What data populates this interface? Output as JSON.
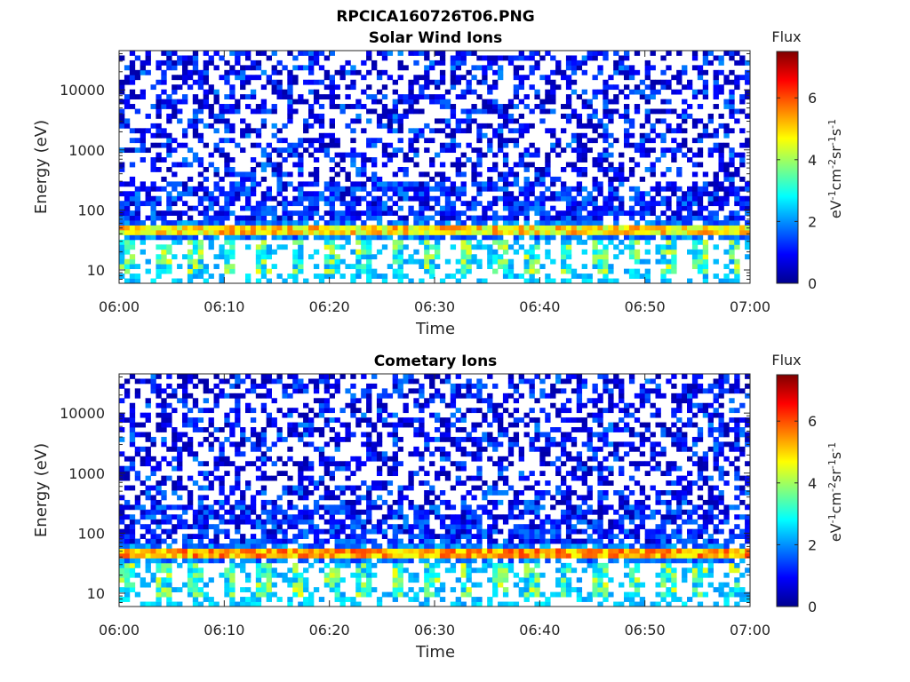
{
  "figure_title": "RPCICA160726T06.PNG",
  "chart_data": [
    {
      "type": "heatmap",
      "title": "Solar Wind Ions",
      "xlabel": "Time",
      "ylabel": "Energy (eV)",
      "x_ticks": [
        "06:00",
        "06:10",
        "06:20",
        "06:30",
        "06:40",
        "06:50",
        "07:00"
      ],
      "y_ticks": [
        "10",
        "100",
        "1000",
        "10000"
      ],
      "y_scale": "log",
      "ylim": [
        6,
        45000
      ],
      "x_range": [
        "06:00",
        "07:00"
      ],
      "colorbar": {
        "title": "Flux",
        "label": "eV-1cm-2sr-1s-1",
        "ticks": [
          "0",
          "2",
          "4",
          "6"
        ],
        "range": [
          0,
          7.5
        ],
        "colormap": "jet"
      },
      "features": [
        {
          "description": "sparse low-level background",
          "energy_range_eV": [
            70,
            45000
          ],
          "flux_range": [
            0.3,
            2.0
          ]
        },
        {
          "description": "bright continuous band",
          "energy_range_eV": [
            38,
            60
          ],
          "flux_range": [
            4.0,
            5.8
          ]
        },
        {
          "description": "periodic bursts",
          "energy_range_eV": [
            8,
            30
          ],
          "flux_range": [
            2.0,
            4.6
          ],
          "period_minutes": 3.2
        }
      ]
    },
    {
      "type": "heatmap",
      "title": "Cometary Ions",
      "xlabel": "Time",
      "ylabel": "Energy (eV)",
      "x_ticks": [
        "06:00",
        "06:10",
        "06:20",
        "06:30",
        "06:40",
        "06:50",
        "07:00"
      ],
      "y_ticks": [
        "10",
        "100",
        "1000",
        "10000"
      ],
      "y_scale": "log",
      "ylim": [
        6,
        45000
      ],
      "x_range": [
        "06:00",
        "07:00"
      ],
      "colorbar": {
        "title": "Flux",
        "label": "eV-1cm-2sr-1s-1",
        "ticks": [
          "0",
          "2",
          "4",
          "6"
        ],
        "range": [
          0,
          7.5
        ],
        "colormap": "jet"
      },
      "features": [
        {
          "description": "sparse low-level background",
          "energy_range_eV": [
            70,
            45000
          ],
          "flux_range": [
            0.3,
            2.0
          ]
        },
        {
          "description": "bright continuous band",
          "energy_range_eV": [
            38,
            60
          ],
          "flux_range": [
            4.5,
            6.2
          ]
        },
        {
          "description": "periodic bursts",
          "energy_range_eV": [
            8,
            30
          ],
          "flux_range": [
            2.0,
            4.6
          ],
          "period_minutes": 3.2
        }
      ]
    }
  ]
}
